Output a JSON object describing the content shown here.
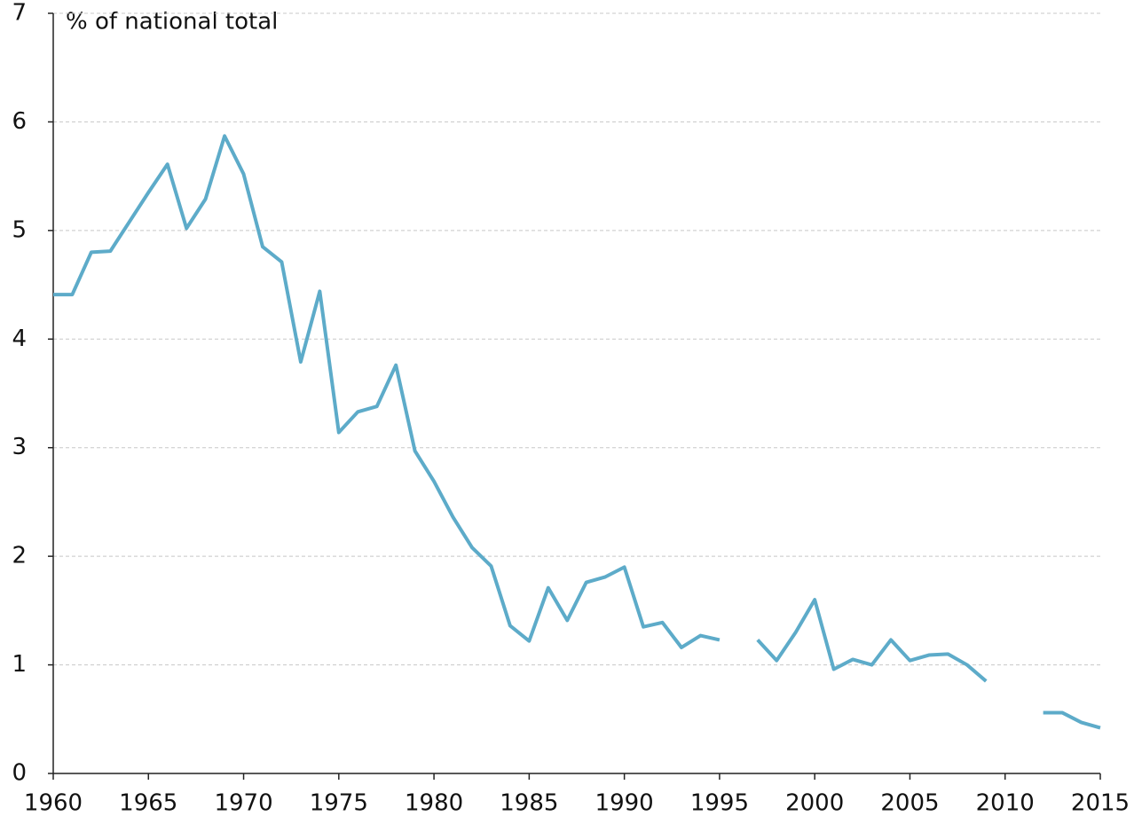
{
  "chart_data": {
    "type": "line",
    "y_label": "% of national total",
    "x": [
      1960,
      1961,
      1962,
      1963,
      1964,
      1965,
      1966,
      1967,
      1968,
      1969,
      1970,
      1971,
      1972,
      1973,
      1974,
      1975,
      1976,
      1977,
      1978,
      1979,
      1980,
      1981,
      1982,
      1983,
      1984,
      1985,
      1986,
      1987,
      1988,
      1989,
      1990,
      1991,
      1992,
      1993,
      1994,
      1995,
      1996,
      1997,
      1998,
      1999,
      2000,
      2001,
      2002,
      2003,
      2004,
      2005,
      2006,
      2007,
      2008,
      2009,
      2010,
      2011,
      2012,
      2013,
      2014,
      2015
    ],
    "series": [
      {
        "color": "#5dabc9",
        "values": [
          4.41,
          4.41,
          4.8,
          4.81,
          5.08,
          5.35,
          5.61,
          5.02,
          5.29,
          5.87,
          5.52,
          4.85,
          4.71,
          3.79,
          4.44,
          3.14,
          3.33,
          3.38,
          3.76,
          2.97,
          2.69,
          2.36,
          2.08,
          1.91,
          1.36,
          1.22,
          1.71,
          1.41,
          1.76,
          1.81,
          1.9,
          1.35,
          1.39,
          1.16,
          1.27,
          1.23,
          null,
          1.23,
          1.04,
          1.3,
          1.6,
          0.96,
          1.05,
          1.0,
          1.23,
          1.04,
          1.09,
          1.1,
          1.0,
          0.85,
          null,
          null,
          0.56,
          0.56,
          0.47,
          0.42
        ]
      }
    ],
    "xlim": [
      1960,
      2015
    ],
    "xticks": [
      1960,
      1965,
      1970,
      1975,
      1980,
      1985,
      1990,
      1995,
      2000,
      2005,
      2010,
      2015
    ],
    "ylim": [
      0,
      7
    ],
    "yticks": [
      0,
      1,
      2,
      3,
      4,
      5,
      6,
      7
    ],
    "grid": true
  }
}
